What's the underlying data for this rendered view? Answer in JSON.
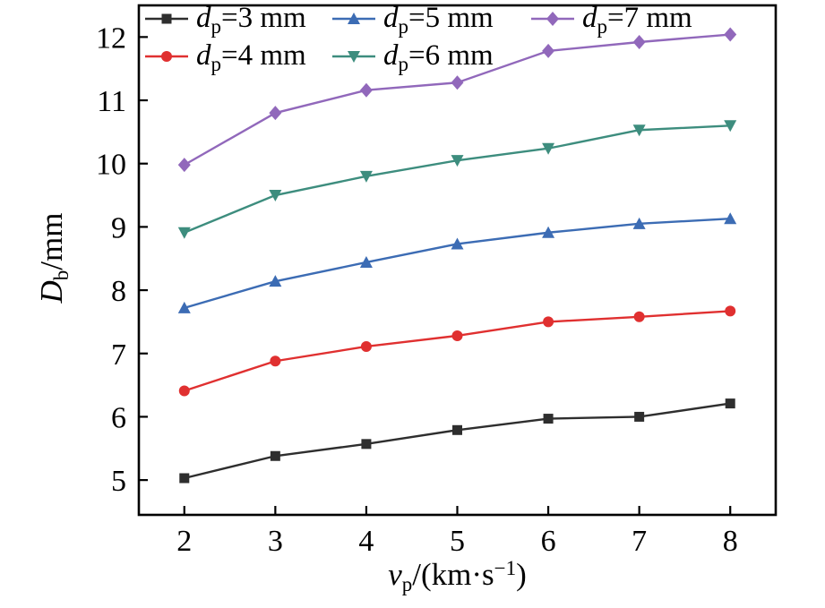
{
  "chart_data": {
    "type": "line",
    "title": "",
    "xlabel": "vp/(km·s−1)",
    "ylabel": "Db/mm",
    "xlabel_parts": {
      "var": "v",
      "sub": "p",
      "rest": "/(km·s",
      "sup": "−1",
      "close": ")"
    },
    "ylabel_parts": {
      "var": "D",
      "sub": "b",
      "rest": "/mm"
    },
    "x": [
      2,
      3,
      4,
      5,
      6,
      7,
      8
    ],
    "x_ticks": [
      2,
      3,
      4,
      5,
      6,
      7,
      8
    ],
    "y_ticks": [
      5,
      6,
      7,
      8,
      9,
      10,
      11,
      12
    ],
    "xlim": [
      1.5,
      8.5
    ],
    "ylim": [
      4.45,
      12.5
    ],
    "grid": false,
    "legend_position": "top-left-inside",
    "series": [
      {
        "name_var": "d",
        "name_sub": "p",
        "name_rest": "=3 mm",
        "marker": "square",
        "color": "#2e2e2e",
        "values": [
          5.03,
          5.38,
          5.57,
          5.79,
          5.97,
          6.0,
          6.21
        ]
      },
      {
        "name_var": "d",
        "name_sub": "p",
        "name_rest": "=4 mm",
        "marker": "circle",
        "color": "#e03030",
        "values": [
          6.41,
          6.88,
          7.11,
          7.28,
          7.5,
          7.58,
          7.67
        ]
      },
      {
        "name_var": "d",
        "name_sub": "p",
        "name_rest": "=5 mm",
        "marker": "triangle-up",
        "color": "#3c6cb4",
        "values": [
          7.72,
          8.14,
          8.44,
          8.73,
          8.91,
          9.05,
          9.13
        ]
      },
      {
        "name_var": "d",
        "name_sub": "p",
        "name_rest": "=6 mm",
        "marker": "triangle-down",
        "color": "#3d8d7e",
        "values": [
          8.91,
          9.5,
          9.8,
          10.05,
          10.24,
          10.53,
          10.6
        ]
      },
      {
        "name_var": "d",
        "name_sub": "p",
        "name_rest": "=7 mm",
        "marker": "diamond",
        "color": "#9168bb",
        "values": [
          9.98,
          10.8,
          11.16,
          11.28,
          11.78,
          11.92,
          12.04
        ]
      }
    ],
    "legend_order": [
      0,
      2,
      4,
      1,
      3
    ]
  }
}
